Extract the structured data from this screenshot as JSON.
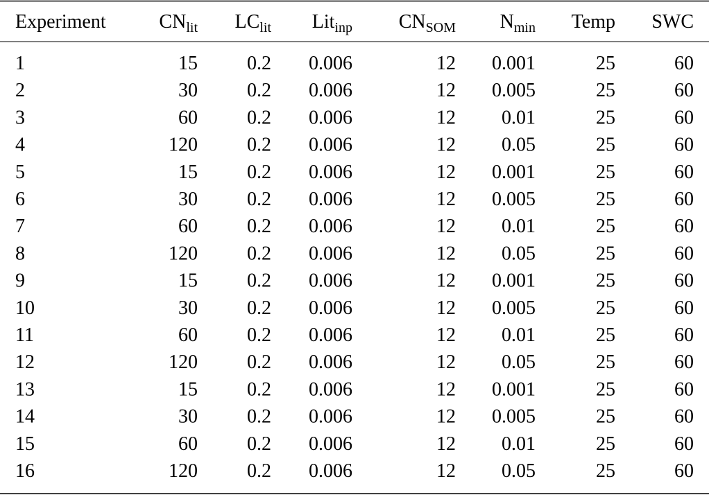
{
  "table": {
    "columns": [
      "Experiment",
      {
        "text": "CN",
        "sub": "lit"
      },
      {
        "text": "LC",
        "sub": "lit"
      },
      {
        "text": "Lit",
        "sub": "inp"
      },
      {
        "text": "CN",
        "sub": "SOM"
      },
      {
        "text": "N",
        "sub": "min"
      },
      "Temp",
      "SWC"
    ],
    "rows": [
      [
        1,
        15,
        0.2,
        0.006,
        12,
        0.001,
        25,
        60
      ],
      [
        2,
        30,
        0.2,
        0.006,
        12,
        0.005,
        25,
        60
      ],
      [
        3,
        60,
        0.2,
        0.006,
        12,
        0.01,
        25,
        60
      ],
      [
        4,
        120,
        0.2,
        0.006,
        12,
        0.05,
        25,
        60
      ],
      [
        5,
        15,
        0.2,
        0.006,
        12,
        0.001,
        25,
        60
      ],
      [
        6,
        30,
        0.2,
        0.006,
        12,
        0.005,
        25,
        60
      ],
      [
        7,
        60,
        0.2,
        0.006,
        12,
        0.01,
        25,
        60
      ],
      [
        8,
        120,
        0.2,
        0.006,
        12,
        0.05,
        25,
        60
      ],
      [
        9,
        15,
        0.2,
        0.006,
        12,
        0.001,
        25,
        60
      ],
      [
        10,
        30,
        0.2,
        0.006,
        12,
        0.005,
        25,
        60
      ],
      [
        11,
        60,
        0.2,
        0.006,
        12,
        0.01,
        25,
        60
      ],
      [
        12,
        120,
        0.2,
        0.006,
        12,
        0.05,
        25,
        60
      ],
      [
        13,
        15,
        0.2,
        0.006,
        12,
        0.001,
        25,
        60
      ],
      [
        14,
        30,
        0.2,
        0.006,
        12,
        0.005,
        25,
        60
      ],
      [
        15,
        60,
        0.2,
        0.006,
        12,
        0.01,
        25,
        60
      ],
      [
        16,
        120,
        0.2,
        0.006,
        12,
        0.05,
        25,
        60
      ]
    ]
  }
}
